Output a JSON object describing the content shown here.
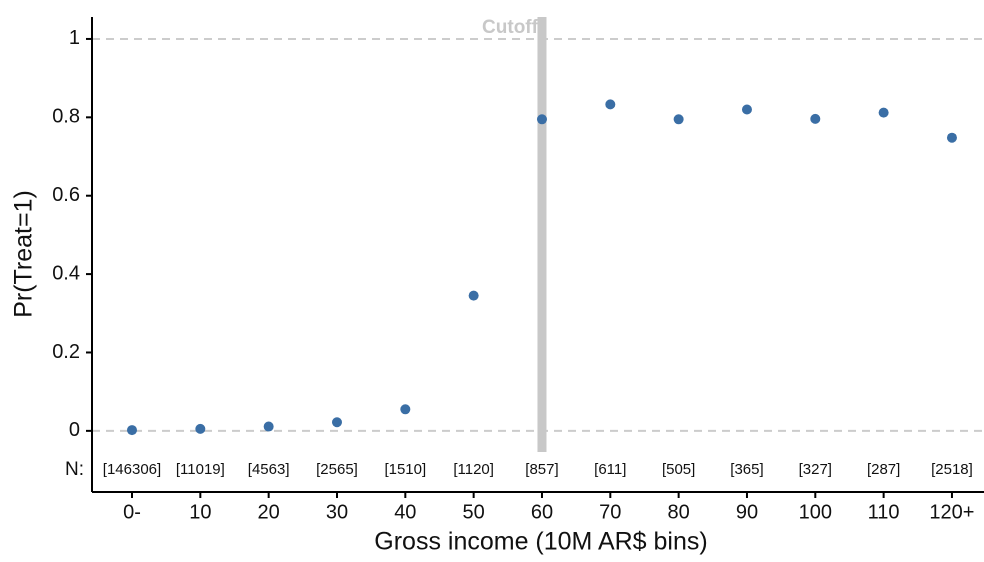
{
  "chart_data": {
    "type": "scatter",
    "x_label": "Gross income (10M AR$ bins)",
    "y_label": "Pr(Treat=1)",
    "categories": [
      "0-",
      "10",
      "20",
      "30",
      "40",
      "50",
      "60",
      "70",
      "80",
      "90",
      "100",
      "110",
      "120+"
    ],
    "values": [
      0.002,
      0.005,
      0.011,
      0.022,
      0.055,
      0.345,
      0.795,
      0.833,
      0.795,
      0.82,
      0.796,
      0.812,
      0.748
    ],
    "color": "#3a6ea5",
    "n_title": "N:",
    "n_labels": [
      "[146306]",
      "[11019]",
      "[4563]",
      "[2565]",
      "[1510]",
      "[1120]",
      "[857]",
      "[611]",
      "[505]",
      "[365]",
      "[327]",
      "[287]",
      "[2518]"
    ],
    "ylim": [
      -0.156,
      1.056
    ],
    "yticks": [
      0,
      0.2,
      0.4,
      0.6,
      0.8,
      1
    ],
    "hlines": [
      0,
      1
    ],
    "vline": {
      "x": "60",
      "label": "Cutoff"
    }
  }
}
